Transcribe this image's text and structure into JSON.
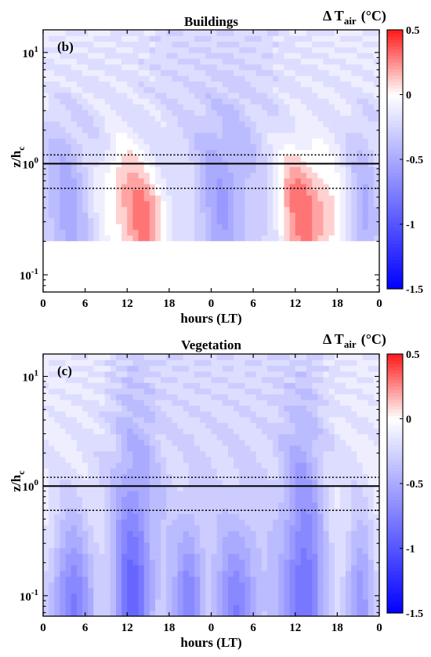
{
  "chart_data": [
    {
      "type": "heatmap",
      "panel_label": "(b)",
      "title": "Buildings",
      "xlabel": "hours (LT)",
      "ylabel_main": "z/h",
      "ylabel_sub": "c",
      "y_scale": "log",
      "ylim": [
        0.07,
        16
      ],
      "xlim": [
        0,
        48
      ],
      "x_ticks": [
        0,
        6,
        12,
        18,
        24,
        30,
        36,
        42,
        48
      ],
      "x_tick_labels": [
        "0",
        "6",
        "12",
        "18",
        "0",
        "6",
        "12",
        "18",
        "0"
      ],
      "y_ticks": [
        {
          "value": 0.1,
          "base": "10",
          "exp": "-1"
        },
        {
          "value": 1,
          "base": "10",
          "exp": "0"
        },
        {
          "value": 10,
          "base": "10",
          "exp": "1"
        }
      ],
      "data_ymin": 0.2,
      "reference_lines": [
        {
          "y": 1.0,
          "style": "solid"
        },
        {
          "y": 1.2,
          "style": "dotted"
        },
        {
          "y": 0.6,
          "style": "dotted"
        }
      ],
      "colorbar": {
        "title_main": "Δ T",
        "title_sub": "air",
        "title_unit": "(°C)",
        "range": [
          -1.5,
          0.5
        ],
        "ticks": [
          0.5,
          0,
          -0.5,
          -1,
          -1.5
        ],
        "tick_labels": [
          "0.5",
          "0",
          "-0.5",
          "-1",
          "-1.5"
        ]
      },
      "features": [
        {
          "x": 14,
          "y": 0.3,
          "value": 0.45,
          "sx": 2.8,
          "sy": 0.35
        },
        {
          "x": 38,
          "y": 0.3,
          "value": 0.45,
          "sx": 2.8,
          "sy": 0.35
        },
        {
          "x": 11,
          "y": 0.8,
          "value": 0.2,
          "sx": 2.0,
          "sy": 0.25
        },
        {
          "x": 36,
          "y": 0.8,
          "value": 0.2,
          "sx": 2.0,
          "sy": 0.25
        },
        {
          "x": 3,
          "y": 0.4,
          "value": -0.35,
          "sx": 3.0,
          "sy": 0.6
        },
        {
          "x": 26,
          "y": 0.45,
          "value": -0.3,
          "sx": 3.0,
          "sy": 0.6
        },
        {
          "x": 46,
          "y": 0.4,
          "value": -0.3,
          "sx": 2.0,
          "sy": 0.6
        },
        {
          "x": 24,
          "y": 3,
          "value": -0.15,
          "sx": 14,
          "sy": 3
        }
      ]
    },
    {
      "type": "heatmap",
      "panel_label": "(c)",
      "title": "Vegetation",
      "xlabel": "hours (LT)",
      "ylabel_main": "z/h",
      "ylabel_sub": "c",
      "y_scale": "log",
      "ylim": [
        0.065,
        16
      ],
      "xlim": [
        0,
        48
      ],
      "x_ticks": [
        0,
        6,
        12,
        18,
        24,
        30,
        36,
        42,
        48
      ],
      "x_tick_labels": [
        "0",
        "6",
        "12",
        "18",
        "0",
        "6",
        "12",
        "18",
        "0"
      ],
      "y_ticks": [
        {
          "value": 0.1,
          "base": "10",
          "exp": "-1"
        },
        {
          "value": 1,
          "base": "10",
          "exp": "0"
        },
        {
          "value": 10,
          "base": "10",
          "exp": "1"
        }
      ],
      "data_ymin": 0.065,
      "reference_lines": [
        {
          "y": 1.0,
          "style": "solid"
        },
        {
          "y": 1.2,
          "style": "dotted"
        },
        {
          "y": 0.6,
          "style": "dotted"
        }
      ],
      "colorbar": {
        "title_main": "Δ T",
        "title_sub": "air",
        "title_unit": "(°C)",
        "range": [
          -1.5,
          0.5
        ],
        "ticks": [
          0.5,
          0,
          -0.5,
          -1,
          -1.5
        ],
        "tick_labels": [
          "0.5",
          "0",
          "-0.5",
          "-1",
          "-1.5"
        ]
      },
      "features": [
        {
          "x": 4,
          "y": 0.07,
          "value": -0.6,
          "sx": 2.5,
          "sy": 0.6
        },
        {
          "x": 13,
          "y": 0.07,
          "value": -0.55,
          "sx": 2.0,
          "sy": 0.7
        },
        {
          "x": 21,
          "y": 0.07,
          "value": -0.55,
          "sx": 1.5,
          "sy": 0.6
        },
        {
          "x": 28,
          "y": 0.07,
          "value": -0.55,
          "sx": 2.0,
          "sy": 0.6
        },
        {
          "x": 37,
          "y": 0.07,
          "value": -0.55,
          "sx": 2.0,
          "sy": 0.7
        },
        {
          "x": 45,
          "y": 0.07,
          "value": -0.5,
          "sx": 1.5,
          "sy": 0.6
        },
        {
          "x": 13,
          "y": 0.8,
          "value": -0.25,
          "sx": 2.5,
          "sy": 1.0
        },
        {
          "x": 37,
          "y": 0.8,
          "value": -0.25,
          "sx": 2.5,
          "sy": 1.0
        },
        {
          "x": 24,
          "y": 1.5,
          "value": -0.15,
          "sx": 14,
          "sy": 2.5
        }
      ]
    }
  ]
}
